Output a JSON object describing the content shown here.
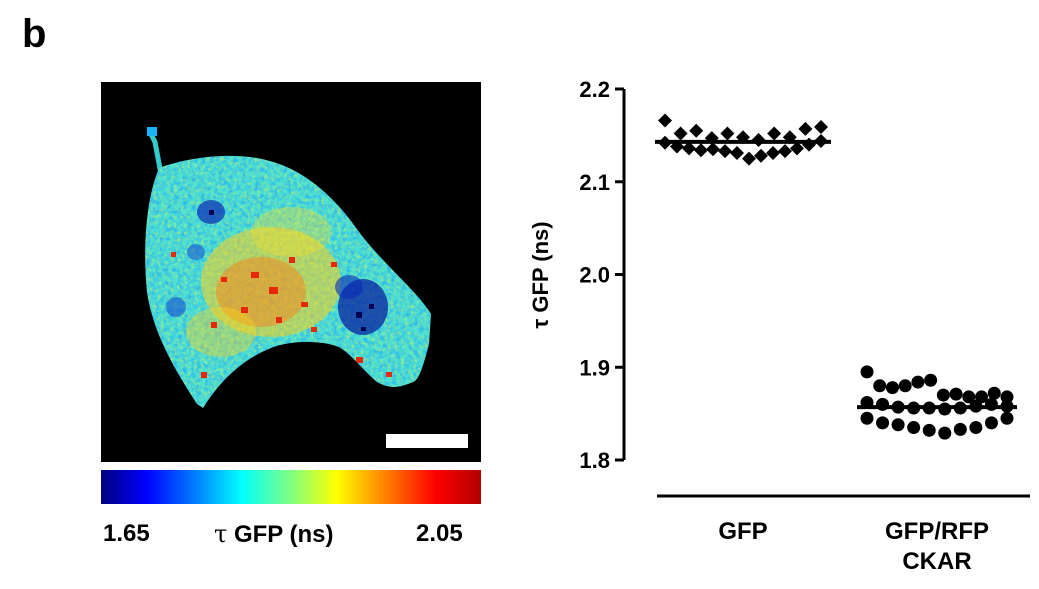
{
  "panel_label": "b",
  "colorbar": {
    "min_label": "1.65",
    "max_label": "2.05",
    "symbol": "τ",
    "label_rest": " GFP (ns)"
  },
  "chart_data": {
    "type": "scatter",
    "ylabel": "τ GFP (ns)",
    "ylim": [
      1.8,
      2.2
    ],
    "yticks": [
      1.8,
      1.9,
      2.0,
      2.1,
      2.2
    ],
    "ytick_labels": [
      "1.8",
      "1.9",
      "2.0",
      "2.1",
      "2.2"
    ],
    "categories": [
      "GFP",
      "GFP/RFP CKAR"
    ],
    "category_lines": [
      [
        "GFP"
      ],
      [
        "GFP/RFP",
        "CKAR"
      ]
    ],
    "series": [
      {
        "category": "GFP",
        "marker": "diamond",
        "mean": 2.143,
        "values": [
          2.166,
          2.152,
          2.155,
          2.147,
          2.152,
          2.148,
          2.145,
          2.152,
          2.148,
          2.157,
          2.159,
          2.142,
          2.138,
          2.136,
          2.134,
          2.135,
          2.133,
          2.131,
          2.125,
          2.128,
          2.131,
          2.133,
          2.136,
          2.14,
          2.144
        ]
      },
      {
        "category": "GFP/RFP CKAR",
        "marker": "circle",
        "mean": 1.857,
        "values": [
          1.895,
          1.88,
          1.878,
          1.88,
          1.884,
          1.886,
          1.87,
          1.871,
          1.868,
          1.868,
          1.872,
          1.868,
          1.862,
          1.86,
          1.857,
          1.856,
          1.856,
          1.855,
          1.856,
          1.858,
          1.86,
          1.858,
          1.845,
          1.84,
          1.838,
          1.835,
          1.832,
          1.829,
          1.833,
          1.835,
          1.84,
          1.845
        ]
      }
    ]
  }
}
